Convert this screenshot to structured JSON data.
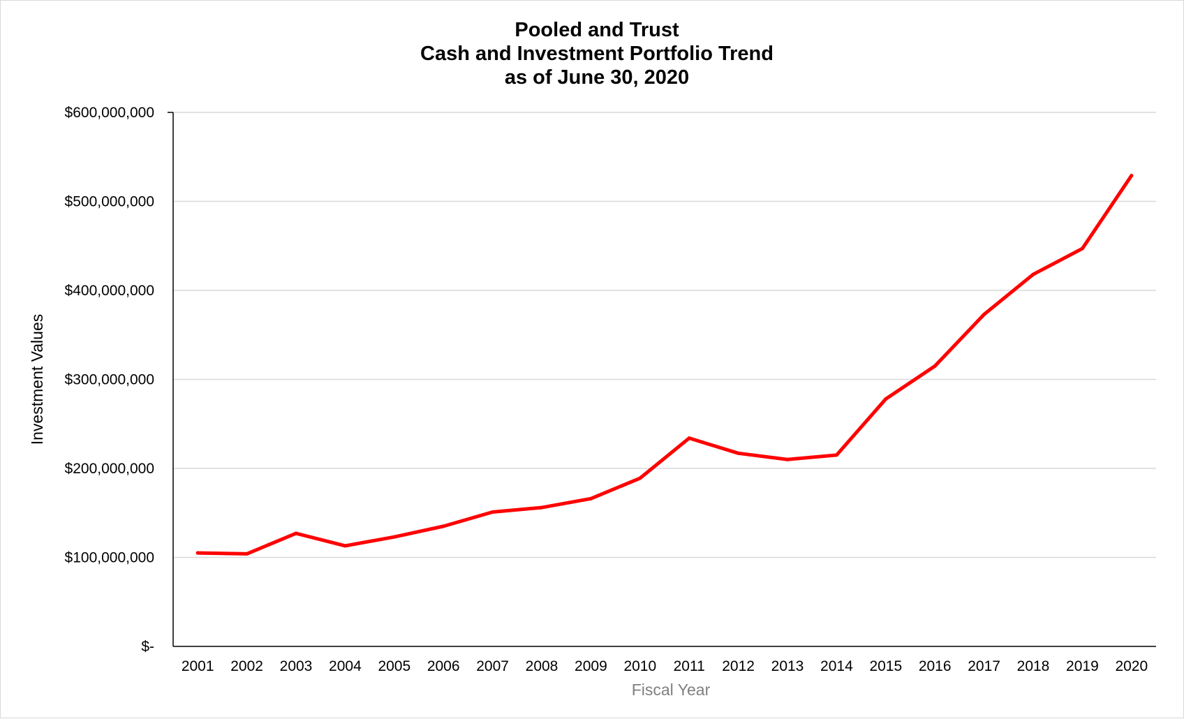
{
  "chart_data": {
    "type": "line",
    "title_lines": [
      "Pooled and Trust",
      "Cash and Investment Portfolio Trend",
      "as of June 30, 2020"
    ],
    "xlabel": "Fiscal Year",
    "ylabel": "Investment Values",
    "categories": [
      "2001",
      "2002",
      "2003",
      "2004",
      "2005",
      "2006",
      "2007",
      "2008",
      "2009",
      "2010",
      "2011",
      "2012",
      "2013",
      "2014",
      "2015",
      "2016",
      "2017",
      "2018",
      "2019",
      "2020"
    ],
    "series": [
      {
        "values": [
          105000000,
          104000000,
          127000000,
          113000000,
          123000000,
          135000000,
          151000000,
          156000000,
          166000000,
          189000000,
          234000000,
          217000000,
          210000000,
          215000000,
          278000000,
          315000000,
          373000000,
          418000000,
          447000000,
          529000000
        ],
        "color": "#ff0000"
      }
    ],
    "ylim": [
      0,
      600000000
    ],
    "yticks": [
      0,
      100000000,
      200000000,
      300000000,
      400000000,
      500000000,
      600000000
    ],
    "ytick_labels": [
      "$-",
      "$100,000,000",
      "$200,000,000",
      "$300,000,000",
      "$400,000,000",
      "$500,000,000",
      "$600,000,000"
    ],
    "grid": true,
    "legend": "none",
    "colors": {
      "line": "#ff0000",
      "grid": "#d9d9d9",
      "axis": "#000000",
      "xlabel": "#7f7f7f"
    }
  }
}
